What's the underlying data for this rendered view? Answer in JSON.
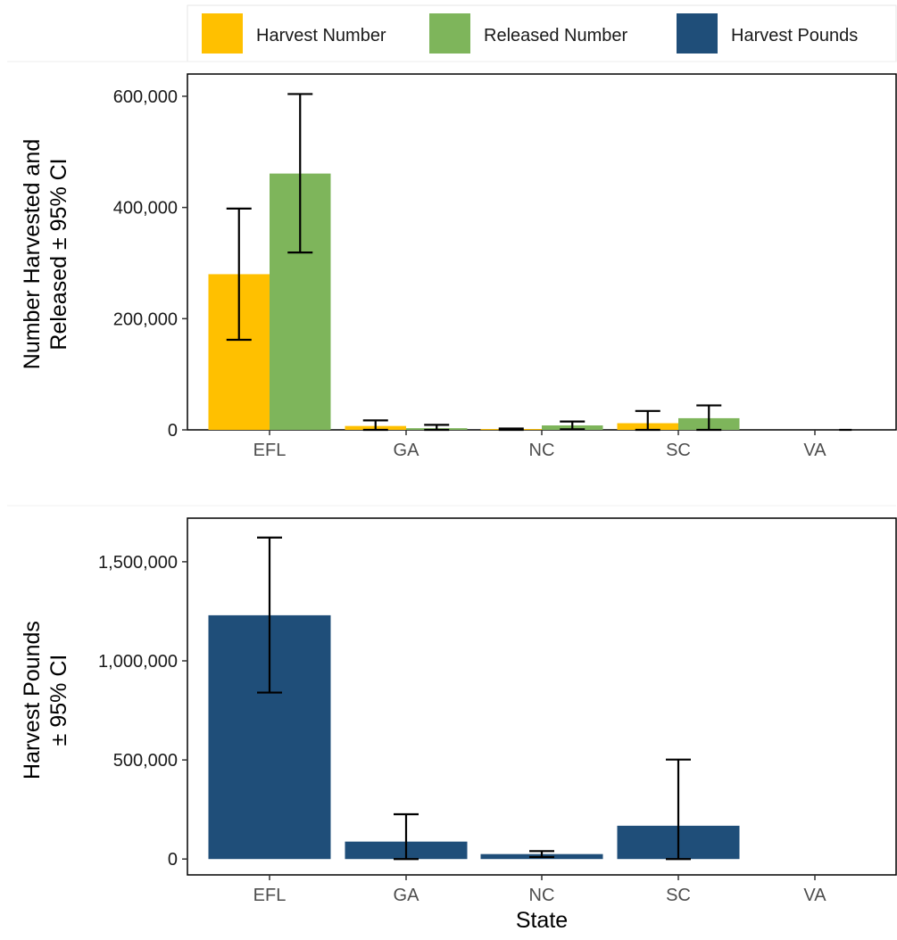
{
  "colors": {
    "harvest_number": "#FFC000",
    "released_number": "#7EB55B",
    "harvest_pounds": "#1F4E79"
  },
  "legend": {
    "items": [
      {
        "label": "Harvest Number",
        "color": "#FFC000"
      },
      {
        "label": "Released Number",
        "color": "#7EB55B"
      },
      {
        "label": "Harvest Pounds",
        "color": "#1F4E79"
      }
    ],
    "placement": "top"
  },
  "chart_data": [
    {
      "type": "bar",
      "title": "",
      "xlabel": "",
      "ylabel_lines": [
        "Number Harvested and",
        "Released ± 95% CI"
      ],
      "categories": [
        "EFL",
        "GA",
        "NC",
        "SC",
        "VA"
      ],
      "ylim": [
        0,
        640000
      ],
      "yticks": [
        0,
        200000,
        400000,
        600000
      ],
      "ytick_labels": [
        "0",
        "200,000",
        "400,000",
        "600,000"
      ],
      "grid": false,
      "series": [
        {
          "name": "Harvest Number",
          "color": "#FFC000",
          "values": [
            280000,
            7000,
            1500,
            12000,
            0
          ],
          "ci_low": [
            162000,
            0,
            0,
            0,
            null
          ],
          "ci_high": [
            398000,
            17000,
            2500,
            34000,
            null
          ]
        },
        {
          "name": "Released Number",
          "color": "#7EB55B",
          "values": [
            461000,
            3000,
            8000,
            21000,
            0
          ],
          "ci_low": [
            319000,
            0,
            1000,
            0,
            0
          ],
          "ci_high": [
            604000,
            9000,
            15000,
            44000,
            0
          ]
        }
      ]
    },
    {
      "type": "bar",
      "title": "",
      "xlabel": "State",
      "ylabel_lines": [
        "Harvest Pounds",
        "± 95% CI"
      ],
      "categories": [
        "EFL",
        "GA",
        "NC",
        "SC",
        "VA"
      ],
      "ylim": [
        -80000,
        1720000
      ],
      "yticks": [
        0,
        500000,
        1000000,
        1500000
      ],
      "ytick_labels": [
        "0",
        "500,000",
        "1,000,000",
        "1,500,000"
      ],
      "grid": false,
      "series": [
        {
          "name": "Harvest Pounds",
          "color": "#1F4E79",
          "values": [
            1230000,
            88000,
            25000,
            168000,
            0
          ],
          "ci_low": [
            840000,
            0,
            10000,
            0,
            null
          ],
          "ci_high": [
            1622000,
            226000,
            40000,
            502000,
            null
          ]
        }
      ]
    }
  ]
}
